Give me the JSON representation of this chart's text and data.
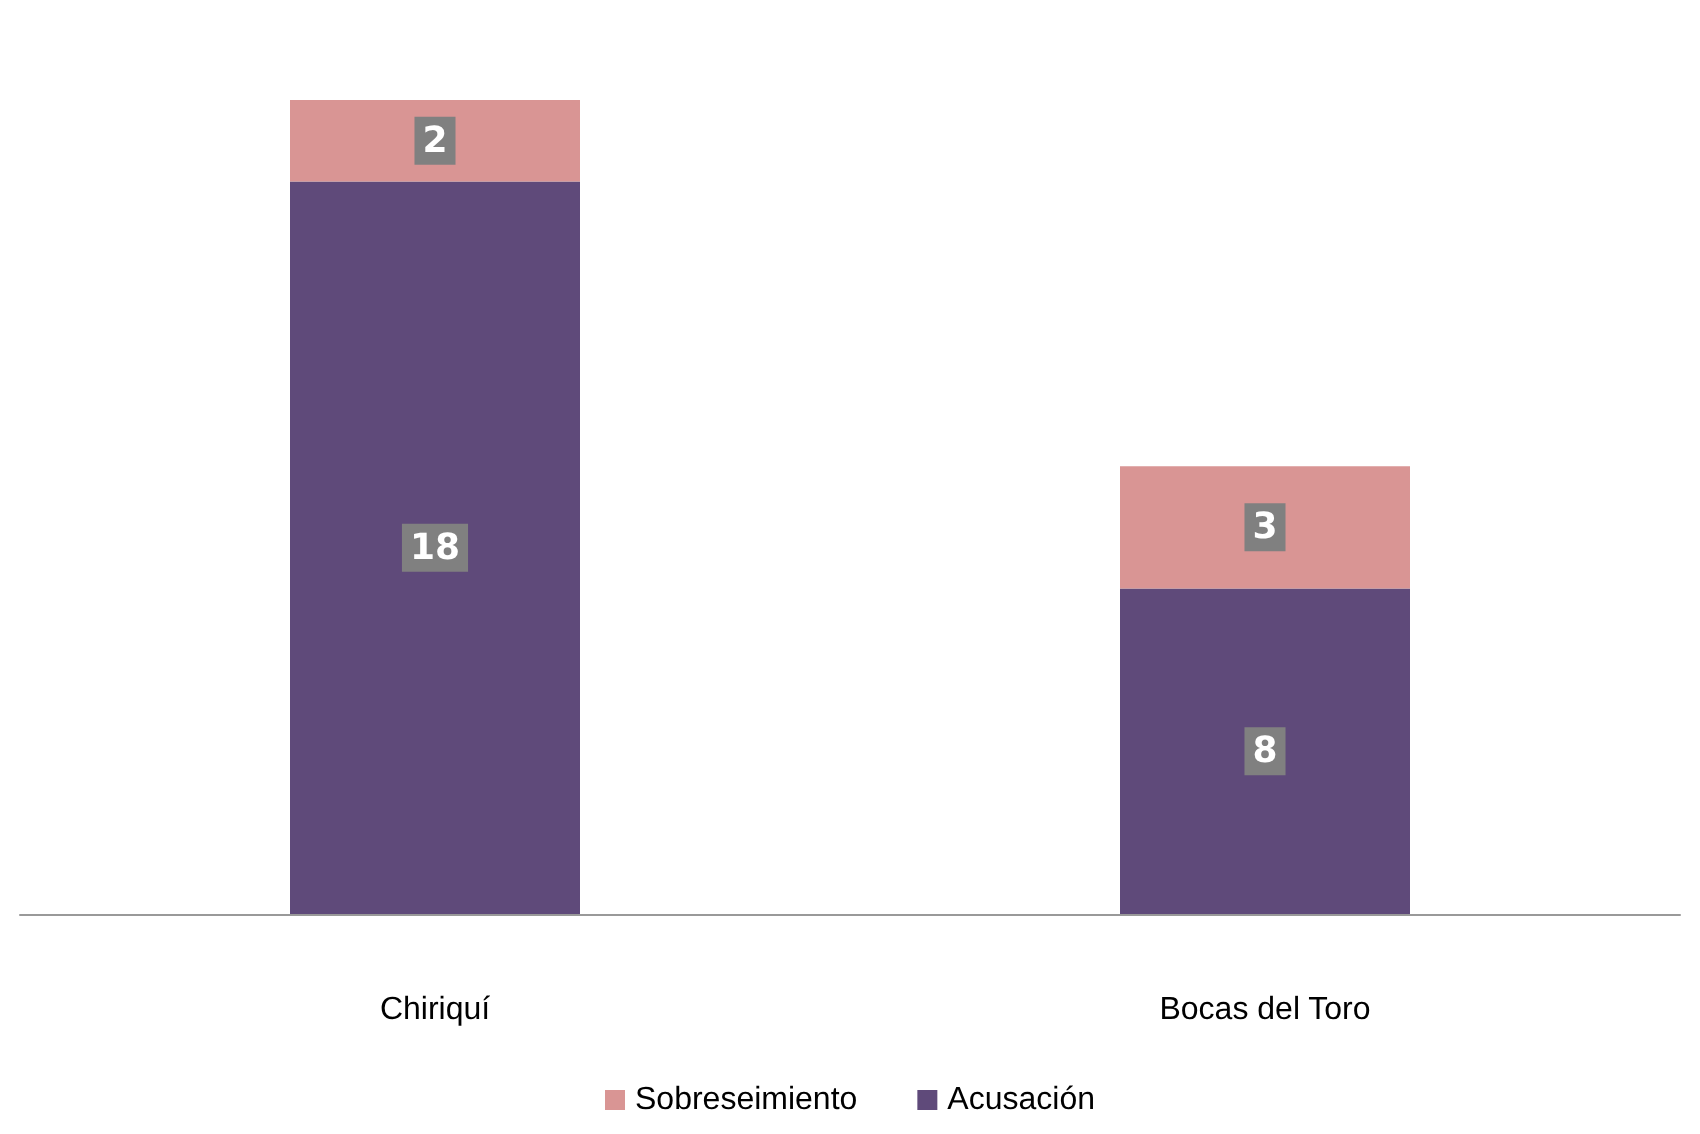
{
  "chart_data": {
    "type": "bar",
    "stacked": true,
    "categories": [
      "Chiriquí",
      "Bocas del Toro"
    ],
    "series": [
      {
        "name": "Acusación",
        "color": "#5f4a7a",
        "values": [
          18,
          8
        ]
      },
      {
        "name": "Sobreseimiento",
        "color": "#d99594",
        "values": [
          2,
          3
        ]
      }
    ],
    "data_labels": true,
    "legend": "bottom"
  }
}
